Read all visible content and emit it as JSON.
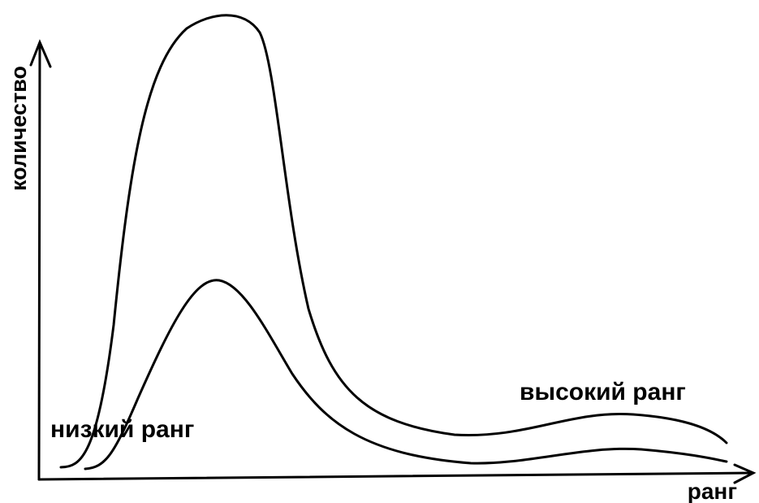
{
  "axes": {
    "y_label": "количество",
    "x_label": "ранг"
  },
  "annotations": [
    "низкий ранг",
    "высокий ранг"
  ]
}
